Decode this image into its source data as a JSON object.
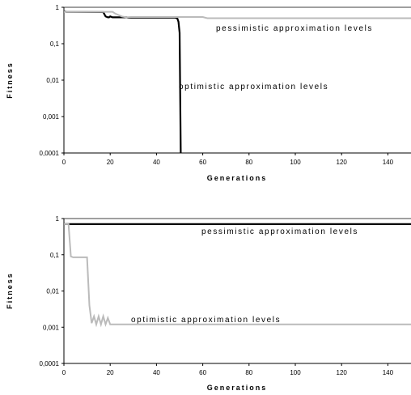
{
  "chart_data": [
    {
      "type": "line",
      "xlabel": "Generations",
      "ylabel": "Fitness",
      "y_scale": "log",
      "ylim": [
        0.0001,
        1
      ],
      "xlim": [
        0,
        150
      ],
      "x_ticks": [
        "0",
        "20",
        "40",
        "60",
        "80",
        "100",
        "120",
        "140"
      ],
      "y_ticks": [
        "0,0001",
        "0,001",
        "0,01",
        "0,1",
        "1"
      ],
      "annotations": [
        "pessimistic approximation levels",
        "optimistic approximation levels"
      ],
      "series": [
        {
          "color": "#000000",
          "x": [
            0,
            1,
            17,
            18,
            19,
            19.5,
            20,
            21,
            27,
            28,
            48,
            49,
            49.5,
            50,
            50.5
          ],
          "y": [
            0.77,
            0.75,
            0.74,
            0.56,
            0.53,
            0.53,
            0.56,
            0.53,
            0.53,
            0.52,
            0.52,
            0.5,
            0.4,
            0.2,
            0.0001
          ]
        },
        {
          "color": "#bbbbbb",
          "x": [
            0,
            8,
            21,
            22,
            25,
            27,
            29,
            60,
            62,
            64,
            150
          ],
          "y": [
            0.75,
            0.75,
            0.75,
            0.68,
            0.56,
            0.53,
            0.54,
            0.54,
            0.5,
            0.5,
            0.5
          ]
        }
      ]
    },
    {
      "type": "line",
      "xlabel": "Generations",
      "ylabel": "Fitness",
      "y_scale": "log",
      "ylim": [
        0.0001,
        1
      ],
      "xlim": [
        0,
        150
      ],
      "x_ticks": [
        "0",
        "20",
        "40",
        "60",
        "80",
        "100",
        "120",
        "140"
      ],
      "y_ticks": [
        "0,0001",
        "0,001",
        "0,01",
        "0,1",
        "1"
      ],
      "annotations": [
        "pessimistic approximation levels",
        "optimistic approximation levels"
      ],
      "series": [
        {
          "color": "#000000",
          "x": [
            0,
            150
          ],
          "y": [
            0.7,
            0.7
          ]
        },
        {
          "color": "#bbbbbb",
          "x": [
            0,
            2,
            3,
            4,
            5,
            10,
            11,
            12,
            13,
            14,
            15,
            16,
            17,
            18,
            19,
            20,
            150
          ],
          "y": [
            0.7,
            0.7,
            0.09,
            0.085,
            0.085,
            0.085,
            0.004,
            0.0013,
            0.002,
            0.0012,
            0.002,
            0.0012,
            0.002,
            0.0012,
            0.0018,
            0.0012,
            0.0012
          ]
        }
      ]
    }
  ]
}
